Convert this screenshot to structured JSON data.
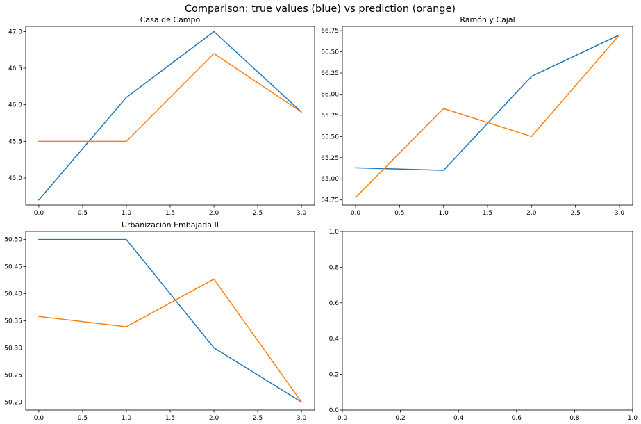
{
  "figure_title": "Comparison: true values (blue) vs prediction (orange)",
  "colors": {
    "true": "#1f77b4",
    "prediction": "#ff7f0e"
  },
  "chart_data": [
    {
      "type": "line",
      "title": "Casa de Campo",
      "x": [
        0,
        1,
        2,
        3
      ],
      "xlim": [
        -0.15,
        3.15
      ],
      "ylim": [
        44.63,
        47.07
      ],
      "xticks": [
        "0.0",
        "0.5",
        "1.0",
        "1.5",
        "2.0",
        "2.5",
        "3.0"
      ],
      "yticks": [
        "45.0",
        "45.5",
        "46.0",
        "46.5",
        "47.0"
      ],
      "grid": false,
      "series": [
        {
          "color": "#1f77b4",
          "values": [
            44.7,
            46.1,
            47.0,
            45.9
          ]
        },
        {
          "color": "#ff7f0e",
          "values": [
            45.5,
            45.5,
            46.7,
            45.9
          ]
        }
      ]
    },
    {
      "type": "line",
      "title": "Ramón y Cajal",
      "x": [
        0,
        1,
        2,
        3
      ],
      "xlim": [
        -0.15,
        3.15
      ],
      "ylim": [
        64.69,
        66.8
      ],
      "xticks": [
        "0.0",
        "0.5",
        "1.0",
        "1.5",
        "2.0",
        "2.5",
        "3.0"
      ],
      "yticks": [
        "64.75",
        "65.00",
        "65.25",
        "65.50",
        "65.75",
        "66.00",
        "66.25",
        "66.50",
        "66.75"
      ],
      "grid": false,
      "series": [
        {
          "color": "#1f77b4",
          "values": [
            65.13,
            65.1,
            66.21,
            66.7
          ]
        },
        {
          "color": "#ff7f0e",
          "values": [
            64.78,
            65.83,
            65.5,
            66.7
          ]
        }
      ]
    },
    {
      "type": "line",
      "title": "Urbanización Embajada II",
      "x": [
        0,
        1,
        2,
        3
      ],
      "xlim": [
        -0.15,
        3.15
      ],
      "ylim": [
        50.185,
        50.515
      ],
      "xticks": [
        "0.0",
        "0.5",
        "1.0",
        "1.5",
        "2.0",
        "2.5",
        "3.0"
      ],
      "yticks": [
        "50.20",
        "50.25",
        "50.30",
        "50.35",
        "50.40",
        "50.45",
        "50.50"
      ],
      "grid": false,
      "series": [
        {
          "color": "#1f77b4",
          "values": [
            50.5,
            50.5,
            50.3,
            50.2
          ]
        },
        {
          "color": "#ff7f0e",
          "values": [
            50.358,
            50.339,
            50.427,
            50.2
          ]
        }
      ]
    },
    {
      "type": "line",
      "title": "",
      "x": [],
      "xlim": [
        0,
        1
      ],
      "ylim": [
        0,
        1
      ],
      "xticks": [
        "0.0",
        "0.2",
        "0.4",
        "0.6",
        "0.8",
        "1.0"
      ],
      "yticks": [
        "0.0",
        "0.2",
        "0.4",
        "0.6",
        "0.8",
        "1.0"
      ],
      "grid": false,
      "series": []
    }
  ]
}
